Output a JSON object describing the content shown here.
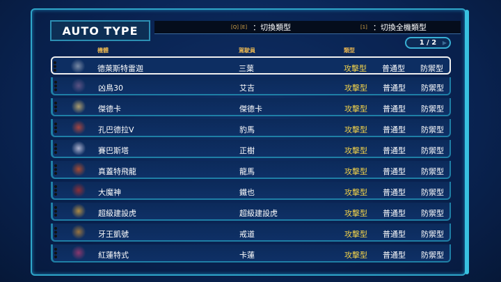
{
  "title": "AUTO TYPE",
  "hints": {
    "keys1": "[Q]  [E]",
    "label1": "：切換類型",
    "keys2": "[1]",
    "label2": "：切換全機類型"
  },
  "page": "1 / 2",
  "columns": {
    "unit": "機體",
    "pilot": "駕駛員",
    "type": "類型"
  },
  "type_options": [
    "攻擊型",
    "普通型",
    "防禦型"
  ],
  "selected_type": "攻擊型",
  "rows": [
    {
      "unit": "德萊斯特雷迦",
      "pilot": "三葉",
      "color": "#8c9ab0"
    },
    {
      "unit": "凶鳥30",
      "pilot": "艾吉",
      "color": "#6a5a8a"
    },
    {
      "unit": "傑德卡",
      "pilot": "傑德卡",
      "color": "#c8b070"
    },
    {
      "unit": "孔巴德拉V",
      "pilot": "豹馬",
      "color": "#c04a3a"
    },
    {
      "unit": "賽巴斯塔",
      "pilot": "正樹",
      "color": "#c8c8e0"
    },
    {
      "unit": "真蓋特飛龍",
      "pilot": "龍馬",
      "color": "#c0502a"
    },
    {
      "unit": "大魔神",
      "pilot": "鐵也",
      "color": "#a03030"
    },
    {
      "unit": "超級建設虎",
      "pilot": "超級建設虎",
      "color": "#c89a40"
    },
    {
      "unit": "牙王凱號",
      "pilot": "戒道",
      "color": "#b0803a"
    },
    {
      "unit": "紅蓮特式",
      "pilot": "卡蓮",
      "color": "#a03a70"
    }
  ]
}
